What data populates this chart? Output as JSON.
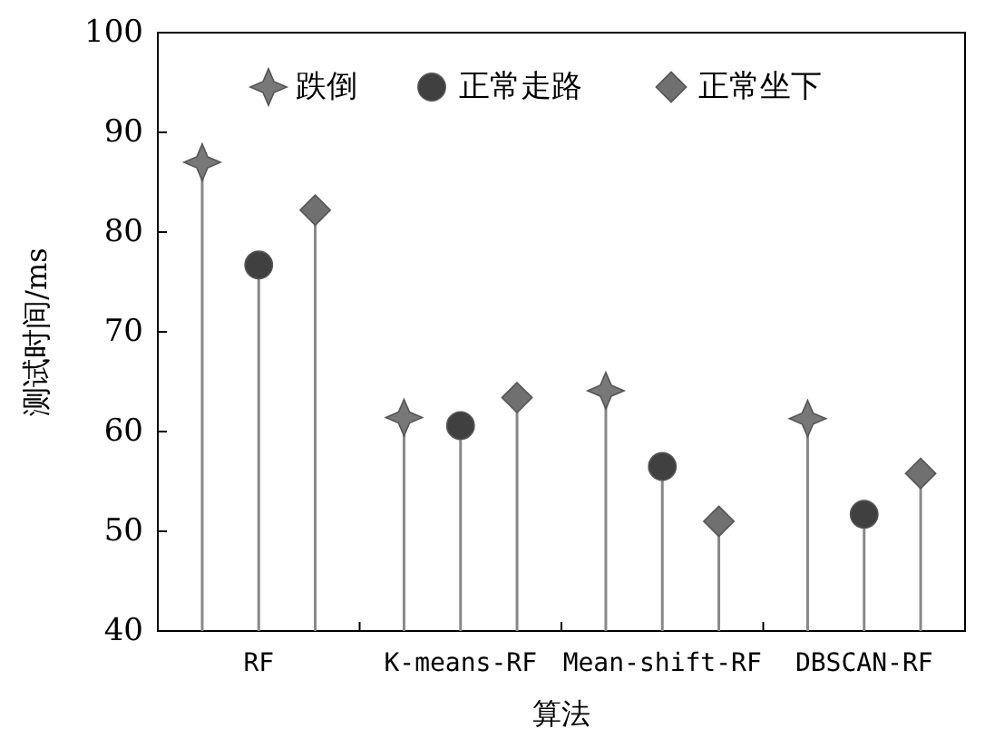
{
  "chart_data": {
    "type": "lollipop",
    "xlabel": "算法",
    "ylabel": "测试时间/ms",
    "categories": [
      "RF",
      "K-means-RF",
      "Mean-shift-RF",
      "DBSCAN-RF"
    ],
    "ylim": [
      40,
      100
    ],
    "yticks": [
      40,
      50,
      60,
      70,
      80,
      90,
      100
    ],
    "legend": "top",
    "grid": false,
    "series": [
      {
        "name": "跌倒",
        "color": "#787878",
        "marker": "star",
        "values": [
          87.0,
          61.4,
          64.1,
          61.3
        ]
      },
      {
        "name": "正常走路",
        "color": "#404040",
        "marker": "circle",
        "values": [
          76.7,
          60.6,
          56.5,
          51.7
        ]
      },
      {
        "name": "正常坐下",
        "color": "#707070",
        "marker": "diamond",
        "values": [
          82.2,
          63.4,
          51.0,
          55.8
        ]
      }
    ]
  }
}
